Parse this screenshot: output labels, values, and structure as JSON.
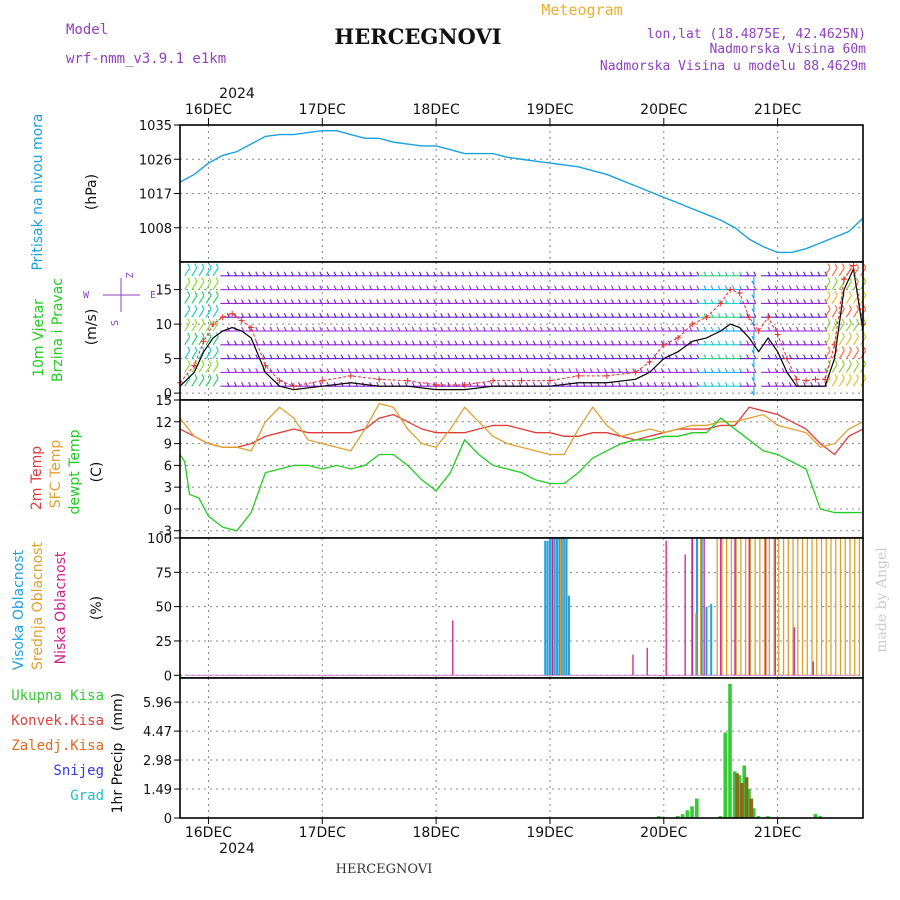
{
  "header": {
    "model_label": "Model",
    "model_version": "wrf-nmm_v3.9.1  e1km",
    "station": "HERCEGNOVI",
    "product": "Meteogram",
    "lonlat": "lon,lat (18.4875E, 42.4625N)",
    "elevation": "Nadmorska Visina 60m",
    "model_elevation": "Nadmorska Visina u modelu 88.4629m",
    "footer_station": "HERCEGNOVI",
    "credit": "made by Angel"
  },
  "colors": {
    "pressure": "#1aa0e0",
    "wind_speed": "#000000",
    "wind_gust": "#e03030",
    "temp_2m": "#e03c3c",
    "temp_sfc": "#e0a030",
    "dewpoint": "#22cc22",
    "cloud_high": "#20a0e0",
    "cloud_mid": "#e0a030",
    "cloud_low": "#cc2288",
    "precip_total": "#33cc33",
    "precip_conv": "#e04040",
    "precip_frozen": "#e06a20",
    "snow": "#3838e0",
    "graupel": "#20c0c0",
    "model_text": "#9040c0",
    "meteogram_title": "#e8b030"
  },
  "time_axis": {
    "year": "2024",
    "days": [
      "16DEC",
      "17DEC",
      "18DEC",
      "19DEC",
      "20DEC",
      "21DEC"
    ],
    "start_hour": 0,
    "end_hour": 144
  },
  "chart_data": [
    {
      "type": "line",
      "panel": "pressure",
      "ylabel": "Pritisak na nivou mora",
      "unit": "(hPa)",
      "yticks": [
        "1035",
        "1026",
        "1017",
        "1008"
      ],
      "ylim": [
        999,
        1035
      ],
      "series": [
        {
          "x": [
            0,
            3,
            6,
            9,
            12,
            15,
            18,
            21,
            24,
            27,
            30,
            33,
            36,
            39,
            42,
            45,
            48,
            51,
            54,
            57,
            60,
            63,
            66,
            69,
            72,
            75,
            78,
            81,
            84,
            87,
            90,
            93,
            96,
            99,
            102,
            105,
            108,
            111,
            114,
            117,
            120,
            123,
            126,
            129,
            132,
            135,
            138,
            141,
            144
          ],
          "values": [
            1020,
            1022,
            1025,
            1027,
            1028,
            1030,
            1032,
            1032.5,
            1032.5,
            1033,
            1033.5,
            1033.5,
            1032.5,
            1031.5,
            1031.5,
            1030.5,
            1030,
            1029.5,
            1029.5,
            1028.5,
            1027.5,
            1027.5,
            1027.5,
            1026.5,
            1026,
            1025.5,
            1025,
            1024.5,
            1024,
            1023,
            1022,
            1020.5,
            1019,
            1017.5,
            1016,
            1014.5,
            1013,
            1011.5,
            1010,
            1008,
            1005,
            1003,
            1001.5,
            1001.5,
            1002.5,
            1004,
            1005.5,
            1007,
            1010.5
          ]
        }
      ]
    },
    {
      "type": "line",
      "panel": "wind",
      "ylabel": [
        "10m Vjetar",
        "Brzina i Pravac"
      ],
      "unit": "(m/s)",
      "yticks": [
        "15",
        "10",
        "5",
        "0"
      ],
      "ylim": [
        -1,
        19
      ],
      "compass": [
        "Z",
        "W",
        "E",
        "S"
      ],
      "series": [
        {
          "x": [
            0,
            3,
            5,
            7,
            9,
            11,
            13,
            15,
            18,
            21,
            24,
            30,
            36,
            42,
            48,
            54,
            60,
            66,
            72,
            78,
            84,
            90,
            96,
            99,
            102,
            105,
            108,
            111,
            114,
            116,
            118,
            120,
            122,
            124,
            126,
            128,
            130,
            132,
            134,
            136,
            138,
            140,
            142,
            144
          ],
          "values": [
            1,
            3,
            6,
            8,
            9,
            9.5,
            9,
            8,
            3,
            1,
            0.5,
            1,
            1.5,
            1,
            1,
            0.5,
            0.5,
            1,
            1,
            1,
            1.5,
            1.5,
            2,
            3,
            5,
            6,
            7.5,
            8,
            9,
            10,
            9.5,
            8,
            6,
            8,
            6,
            3,
            1,
            1,
            1,
            1,
            5,
            15,
            18,
            9
          ]
        },
        {
          "x": [
            0,
            3,
            5,
            7,
            9,
            11,
            13,
            15,
            18,
            21,
            24,
            30,
            36,
            42,
            48,
            54,
            60,
            66,
            72,
            78,
            84,
            90,
            96,
            99,
            102,
            105,
            108,
            111,
            114,
            116,
            118,
            120,
            122,
            124,
            126,
            128,
            130,
            132,
            134,
            136,
            138,
            140,
            142,
            144
          ],
          "values": [
            1.5,
            4,
            7.5,
            10,
            11,
            11.5,
            10.5,
            9.5,
            4,
            1.8,
            1,
            1.8,
            2.5,
            2,
            1.8,
            1.2,
            1.2,
            1.8,
            1.8,
            1.8,
            2.5,
            2.5,
            3,
            4.5,
            7,
            8,
            10,
            11,
            13,
            15,
            14.5,
            11,
            9,
            11,
            8.5,
            5,
            2,
            1.8,
            2,
            2,
            7,
            16.5,
            18.5,
            10
          ]
        }
      ]
    },
    {
      "type": "line",
      "panel": "temperature",
      "ylabel": [
        "2m Temp",
        "SFC Temp",
        "dewpt Temp"
      ],
      "unit": "(C)",
      "yticks": [
        "15",
        "12",
        "9",
        "6",
        "3",
        "0",
        "-3"
      ],
      "ylim": [
        -4,
        15
      ],
      "series": [
        {
          "x": [
            0,
            3,
            6,
            9,
            12,
            15,
            18,
            21,
            24,
            27,
            30,
            33,
            36,
            39,
            42,
            45,
            48,
            51,
            54,
            57,
            60,
            63,
            66,
            69,
            72,
            75,
            78,
            81,
            84,
            87,
            90,
            93,
            96,
            99,
            102,
            105,
            108,
            111,
            114,
            117,
            120,
            123,
            126,
            129,
            132,
            135,
            138,
            141,
            144
          ],
          "values": [
            11,
            10,
            9,
            8.5,
            8.5,
            9,
            10,
            10.5,
            11,
            10.5,
            10.5,
            10.5,
            10.5,
            11,
            12.5,
            13,
            12,
            11,
            10.5,
            10.5,
            10.5,
            11,
            11.5,
            11.5,
            11,
            10.5,
            10.5,
            10,
            10,
            10.5,
            10.5,
            10,
            9.5,
            10,
            10.5,
            11,
            11,
            11,
            11.5,
            11.5,
            14,
            13.5,
            13,
            12,
            11,
            9,
            7.5,
            10,
            11
          ]
        },
        {
          "x": [
            0,
            3,
            6,
            9,
            12,
            15,
            18,
            21,
            24,
            27,
            30,
            33,
            36,
            39,
            42,
            45,
            48,
            51,
            54,
            57,
            60,
            63,
            66,
            69,
            72,
            75,
            78,
            81,
            84,
            87,
            90,
            93,
            96,
            99,
            102,
            105,
            108,
            111,
            114,
            117,
            120,
            123,
            126,
            129,
            132,
            135,
            138,
            141,
            144
          ],
          "values": [
            12.5,
            10,
            9,
            8.5,
            8.5,
            8,
            12,
            14,
            12.5,
            9.5,
            9,
            8.5,
            8,
            11,
            14.5,
            14,
            11,
            9,
            8.5,
            11,
            14,
            12,
            10,
            9,
            8.5,
            8,
            7.5,
            7.5,
            11,
            14,
            11.5,
            10,
            10.5,
            11,
            10.5,
            11,
            11.5,
            11.5,
            12,
            12,
            12.5,
            13,
            11.5,
            11,
            10.5,
            8.5,
            9,
            11,
            12
          ]
        },
        {
          "x": [
            0,
            1,
            2,
            4,
            6,
            9,
            12,
            15,
            18,
            21,
            24,
            27,
            30,
            33,
            36,
            39,
            42,
            45,
            48,
            51,
            54,
            57,
            60,
            63,
            66,
            69,
            72,
            75,
            78,
            81,
            84,
            87,
            90,
            93,
            96,
            99,
            102,
            105,
            108,
            111,
            114,
            117,
            120,
            123,
            126,
            129,
            132,
            135,
            138,
            141,
            144
          ],
          "values": [
            7.5,
            6.5,
            2,
            1.5,
            -1,
            -2.5,
            -3,
            -0.5,
            5,
            5.5,
            6,
            6,
            5.5,
            6,
            5.5,
            6,
            7.5,
            7.5,
            6,
            4,
            2.5,
            5,
            9.5,
            7.5,
            6,
            5.5,
            5,
            4,
            3.5,
            3.5,
            5,
            7,
            8,
            9,
            9.5,
            9.5,
            10,
            10,
            10.5,
            10.5,
            12.5,
            11,
            9.5,
            8,
            7.5,
            6.5,
            5.5,
            0,
            -0.5,
            -0.5,
            -0.5
          ]
        }
      ]
    },
    {
      "type": "bar",
      "panel": "clouds",
      "ylabel": [
        "Visoka Oblacnost",
        "Srednja Oblacnost",
        "Niska Oblacnost"
      ],
      "unit": "(%)",
      "yticks": [
        "100",
        "75",
        "50",
        "25",
        "0"
      ],
      "ylim": [
        -2,
        100
      ],
      "series": [
        {
          "x": [
            77,
            77.5,
            78,
            78.5,
            79,
            79.5,
            80,
            80.5,
            81,
            81.5,
            82,
            108,
            109,
            110,
            111,
            112
          ],
          "values": [
            98,
            98,
            100,
            100,
            100,
            100,
            100,
            100,
            100,
            100,
            58,
            100,
            100,
            100,
            50,
            52
          ]
        },
        {
          "x": [
            78.5,
            80,
            81,
            108.5,
            109.5,
            113,
            114,
            115,
            116,
            117,
            118,
            119,
            120,
            121,
            122,
            123,
            124,
            125,
            126,
            127,
            128,
            129,
            130,
            131,
            132,
            133,
            134,
            135,
            136,
            137,
            138,
            139,
            140,
            141,
            142,
            143
          ],
          "values": [
            100,
            100,
            100,
            45,
            100,
            100,
            100,
            100,
            100,
            100,
            100,
            100,
            100,
            100,
            100,
            100,
            100,
            100,
            100,
            100,
            100,
            100,
            100,
            100,
            100,
            100,
            100,
            100,
            100,
            100,
            100,
            100,
            100,
            100,
            100,
            100
          ]
        },
        {
          "x": [
            57,
            78,
            95,
            98,
            102,
            106,
            107.5,
            110,
            113.5,
            116.5,
            119.5,
            123,
            125,
            129,
            133
          ],
          "values": [
            40,
            100,
            15,
            20,
            98,
            88,
            100,
            100,
            100,
            100,
            100,
            100,
            100,
            35,
            10
          ]
        }
      ]
    },
    {
      "type": "bar",
      "panel": "precipitation",
      "ylabel": "1hr Precip",
      "unit": "(mm)",
      "yticks": [
        "5.96",
        "4.47",
        "2.98",
        "1.49",
        "0"
      ],
      "ylim": [
        0,
        7.2
      ],
      "series": [
        {
          "x": [
            101,
            105,
            106,
            107,
            108,
            109,
            114,
            115,
            116,
            117,
            118,
            119,
            120,
            121,
            122,
            124,
            134,
            135
          ],
          "values": [
            0.1,
            0.1,
            0.2,
            0.4,
            0.6,
            1.0,
            0.1,
            4.4,
            6.9,
            2.4,
            2.2,
            2.7,
            1.5,
            0.5,
            0.1,
            0.1,
            0.2,
            0.1
          ]
        },
        {
          "x": [
            117.5,
            118.5,
            119.5,
            120.5
          ],
          "values": [
            2.3,
            1.8,
            2.1,
            1.0
          ]
        }
      ]
    }
  ],
  "legend_labels": {
    "pressure": [
      "Pritisak na nivou mora"
    ],
    "wind": [
      "10m Vjetar",
      "Brzina i Pravac"
    ],
    "temperature": [
      "2m Temp",
      "SFC Temp",
      "dewpt Temp"
    ],
    "clouds": [
      "Visoka Oblacnost",
      "Srednja Oblacnost",
      "Niska Oblacnost"
    ],
    "precipitation": [
      "Ukupna Kisa",
      "Konvek.Kisa",
      "Zaledj.Kisa",
      "Snijeg",
      "Grad"
    ]
  }
}
